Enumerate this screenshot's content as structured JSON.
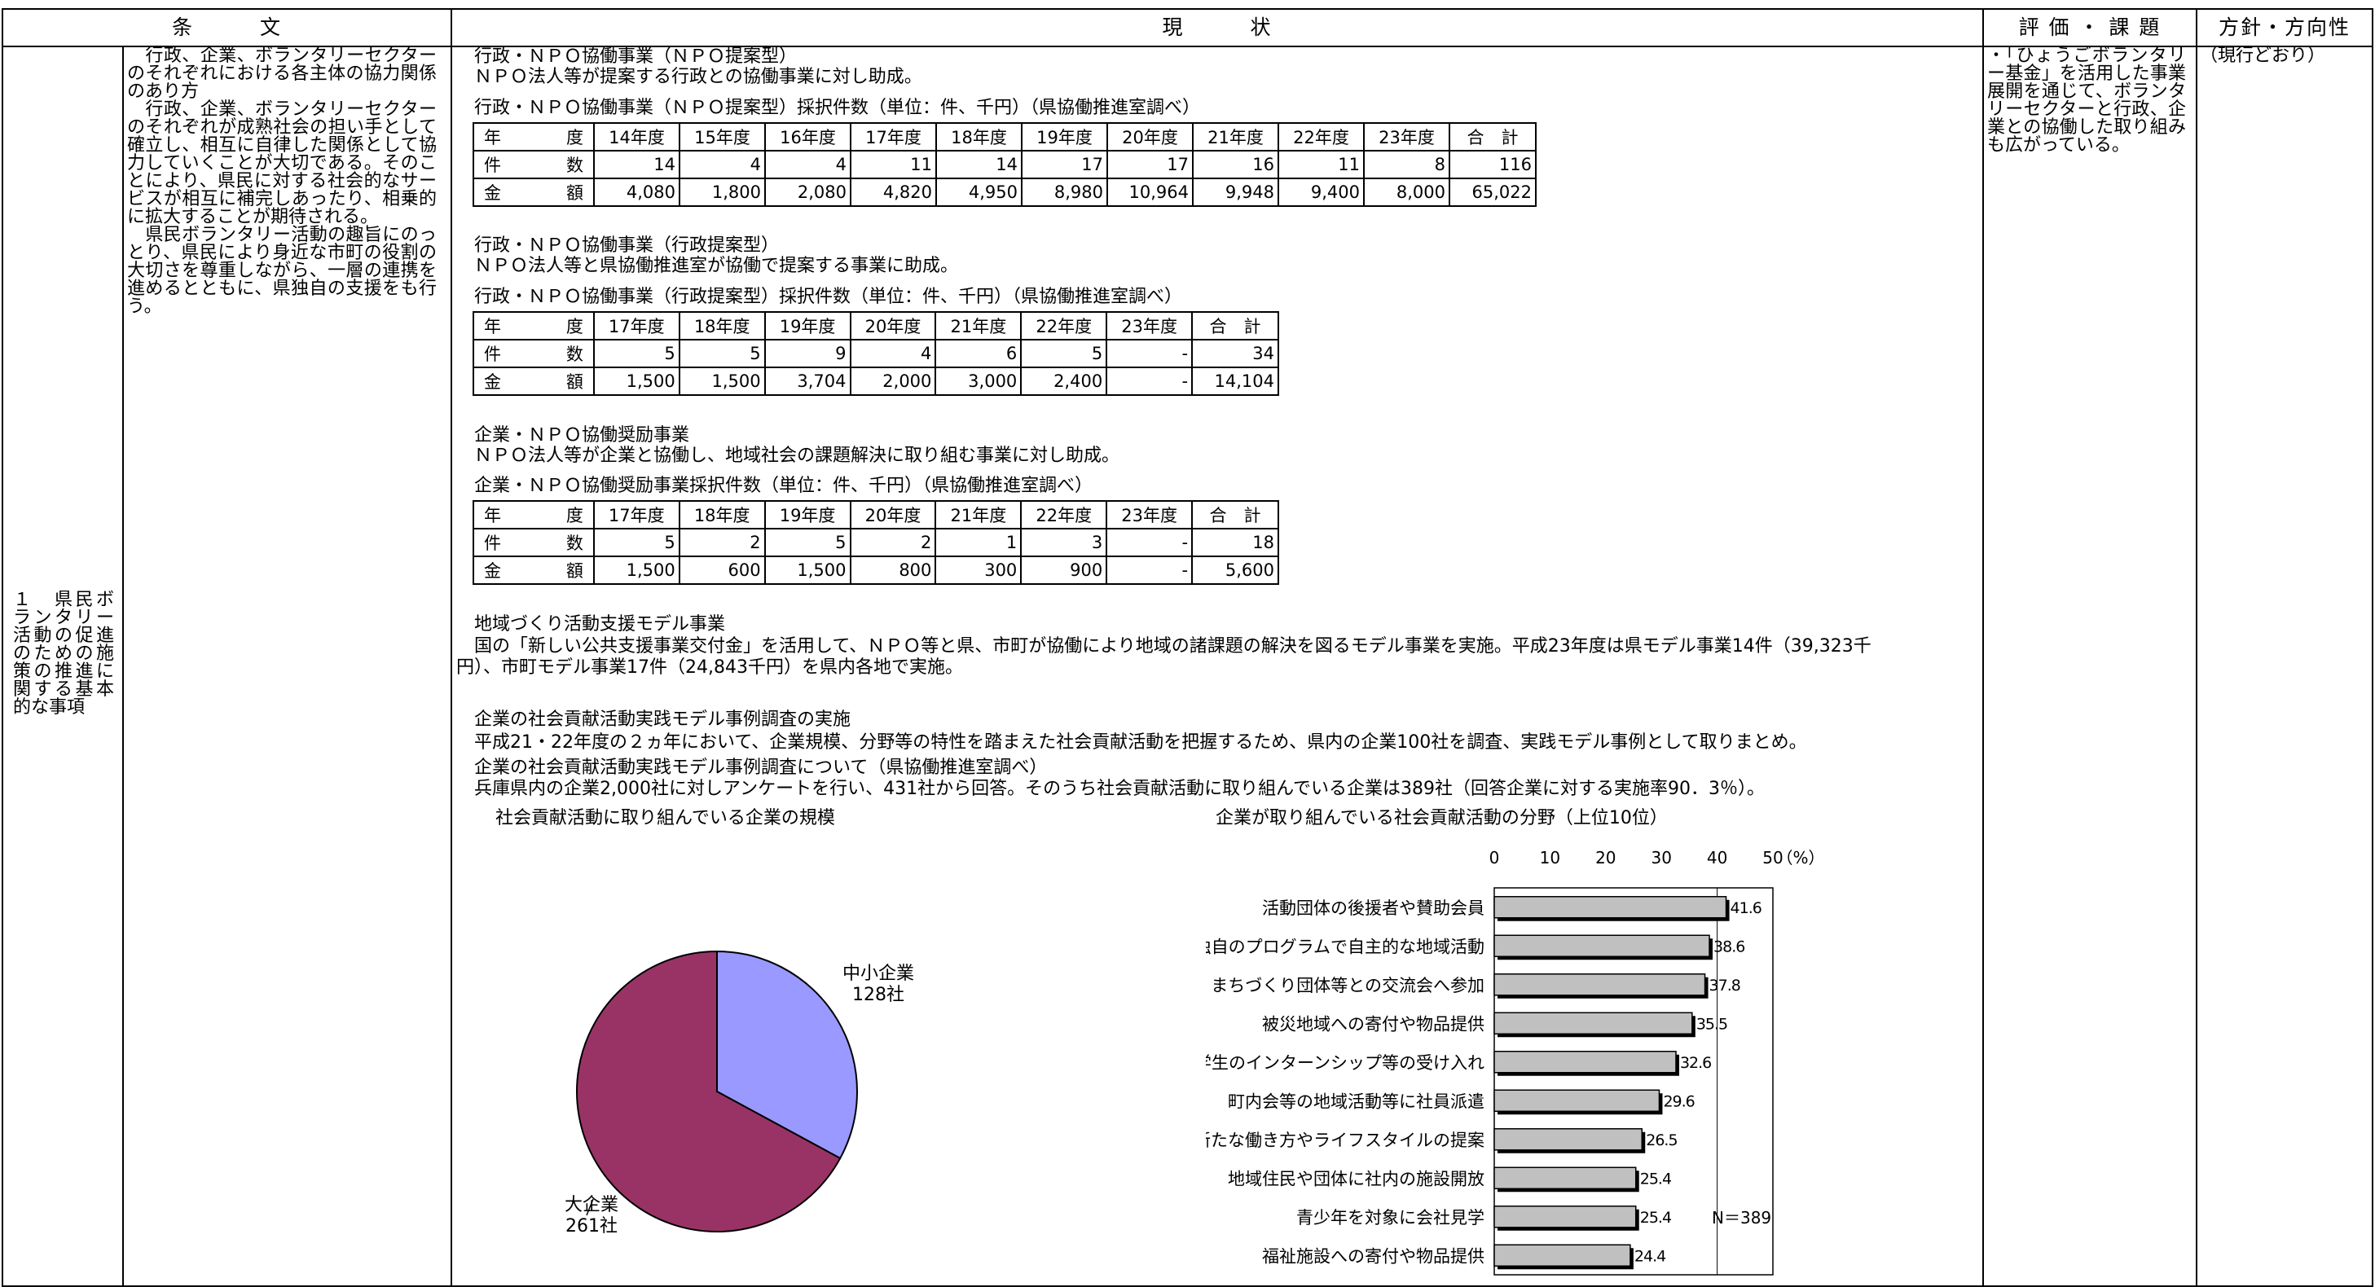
{
  "headers": {
    "article": "条　　　文",
    "status": "現　　　状",
    "evaluation": "評 価 ・ 課 題",
    "policy": "方針・方向性"
  },
  "left_title": "１　県民ボランタリー活動の促進のための施策の推進に関する基本的な事項",
  "article_text": "　行政、企業、ボランタリーセクターのそれぞれにおける各主体の協力関係のあり方\n　行政、企業、ボランタリーセクターのそれぞれが成熟社会の担い手として確立し、相互に自律した関係として協力していくことが大切である。そのことにより、県民に対する社会的なサービスが相互に補完しあったり、相乗的に拡大することが期待される。\n　県民ボランタリー活動の趣旨にのっとり、県民により身近な市町の役割の大切さを尊重しながら、一層の連携を進めるとともに、県独自の支援をも行う。",
  "evaluation_text": "・「ひょうごボランタリー基金」を活用した事業展開を通じて、ボランタリーセクターと行政、企業との協働した取り組みも広がっている。",
  "policy_text": "（現行どおり）",
  "section1": {
    "title": "行政・ＮＰＯ協働事業（ＮＰＯ提案型）",
    "desc": "ＮＰＯ法人等が提案する行政との協働事業に対し助成。",
    "caption": "行政・ＮＰＯ協働事業（ＮＰＯ提案型）採択件数（単位：件、千円）（県協働推進室調べ）",
    "table": {
      "header_label": "年　　度",
      "years": [
        "14年度",
        "15年度",
        "16年度",
        "17年度",
        "18年度",
        "19年度",
        "20年度",
        "21年度",
        "22年度",
        "23年度",
        "合　計"
      ],
      "rows": [
        {
          "label": "件　　数",
          "values": [
            "14",
            "4",
            "4",
            "11",
            "14",
            "17",
            "17",
            "16",
            "11",
            "8",
            "116"
          ]
        },
        {
          "label": "金　　額",
          "values": [
            "4,080",
            "1,800",
            "2,080",
            "4,820",
            "4,950",
            "8,980",
            "10,964",
            "9,948",
            "9,400",
            "8,000",
            "65,022"
          ]
        }
      ]
    }
  },
  "section2": {
    "title": "行政・ＮＰＯ協働事業（行政提案型）",
    "desc": "ＮＰＯ法人等と県協働推進室が協働で提案する事業に助成。",
    "caption": "行政・ＮＰＯ協働事業（行政提案型）採択件数（単位：件、千円）（県協働推進室調べ）",
    "table": {
      "header_label": "年　　度",
      "years": [
        "17年度",
        "18年度",
        "19年度",
        "20年度",
        "21年度",
        "22年度",
        "23年度",
        "合　計"
      ],
      "rows": [
        {
          "label": "件　　数",
          "values": [
            "5",
            "5",
            "9",
            "4",
            "6",
            "5",
            "-",
            "34"
          ]
        },
        {
          "label": "金　　額",
          "values": [
            "1,500",
            "1,500",
            "3,704",
            "2,000",
            "3,000",
            "2,400",
            "-",
            "14,104"
          ]
        }
      ]
    }
  },
  "section3": {
    "title": "企業・ＮＰＯ協働奨励事業",
    "desc": "ＮＰＯ法人等が企業と協働し、地域社会の課題解決に取り組む事業に対し助成。",
    "caption": "企業・ＮＰＯ協働奨励事業採択件数（単位：件、千円）（県協働推進室調べ）",
    "table": {
      "header_label": "年　　度",
      "years": [
        "17年度",
        "18年度",
        "19年度",
        "20年度",
        "21年度",
        "22年度",
        "23年度",
        "合　計"
      ],
      "rows": [
        {
          "label": "件　　数",
          "values": [
            "5",
            "2",
            "5",
            "2",
            "1",
            "3",
            "-",
            "18"
          ]
        },
        {
          "label": "金　　額",
          "values": [
            "1,500",
            "600",
            "1,500",
            "800",
            "300",
            "900",
            "-",
            "5,600"
          ]
        }
      ]
    }
  },
  "section4": {
    "title": "地域づくり活動支援モデル事業",
    "desc1": "国の「新しい公共支援事業交付金」を活用して、ＮＰＯ等と県、市町が協働により地域の諸課題の解決を図るモデル事業を実施。平成23年度は県モデル事業14件（39,323千",
    "desc2": "円）、市町モデル事業17件（24,843千円）を県内各地で実施。"
  },
  "section5": {
    "title": "企業の社会貢献活動実践モデル事例調査の実施",
    "desc1": "平成21・22年度の２ヵ年において、企業規模、分野等の特性を踏まえた社会貢献活動を把握するため、県内の企業100社を調査、実践モデル事例として取りまとめ。",
    "desc2": "企業の社会貢献活動実践モデル事例調査について（県協働推進室調べ）",
    "desc3": "兵庫県内の企業2,000社に対しアンケートを行い、431社から回答。そのうち社会貢献活動に取り組んでいる企業は389社（回答企業に対する実施率90．3％）。"
  },
  "chart_data": [
    {
      "type": "pie",
      "title": "社会貢献活動に取り組んでいる企業の規模",
      "slices": [
        {
          "label": "中小企業",
          "value_label": "128社",
          "value": 128,
          "color": "#9999ff"
        },
        {
          "label": "大企業",
          "value_label": "261社",
          "value": 261,
          "color": "#993366"
        }
      ]
    },
    {
      "type": "bar",
      "orientation": "horizontal",
      "title": "企業が取り組んでいる社会貢献活動の分野（上位10位）",
      "categories": [
        "活動団体の後援者や賛助会員",
        "独自のプログラムで自主的な地域活動",
        "まちづくり団体等との交流会へ参加",
        "被災地域への寄付や物品提供",
        "学生のインターンシップ等の受け入れ",
        "町内会等の地域活動等に社員派遣",
        "新たな働き方やライフスタイルの提案",
        "地域住民や団体に社内の施設開放",
        "青少年を対象に会社見学",
        "福祉施設への寄付や物品提供"
      ],
      "values": [
        41.6,
        38.6,
        37.8,
        35.5,
        32.6,
        29.6,
        26.5,
        25.4,
        25.4,
        24.4
      ],
      "value_labels": [
        "41.6",
        "38.6",
        "37.8",
        "35.5",
        "32.6",
        "29.6",
        "26.5",
        "25.4",
        "25.4",
        "24.4"
      ],
      "x_ticks": [
        "0",
        "10",
        "20",
        "30",
        "40",
        "50"
      ],
      "x_unit": "（%）",
      "xlim": [
        0,
        50
      ],
      "note": "N＝389",
      "color": "#c0c0c0"
    }
  ]
}
